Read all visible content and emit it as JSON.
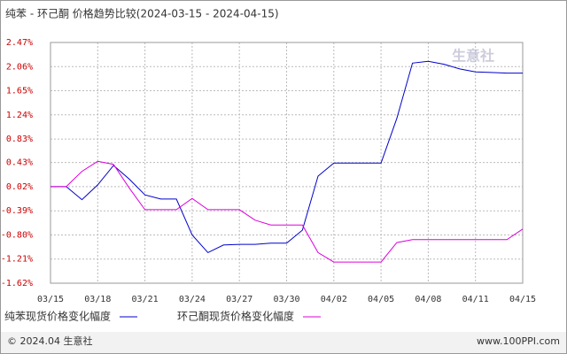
{
  "chart_data": {
    "type": "line",
    "title": "纯苯 - 环己酮 价格趋势比较(2024-03-15 - 2024-04-15)",
    "watermark": "生意社",
    "footer_left": "© 2024.04 生意社",
    "footer_right": "www.100PPI.com",
    "categories": [
      "03/15",
      null,
      null,
      "03/18",
      null,
      null,
      "03/21",
      null,
      null,
      "03/24",
      null,
      null,
      "03/27",
      null,
      null,
      "03/30",
      null,
      null,
      "04/02",
      null,
      null,
      "04/05",
      null,
      null,
      "04/08",
      null,
      null,
      "04/11",
      null,
      null,
      "04/15"
    ],
    "series": [
      {
        "name": "纯苯现货价格变化幅度",
        "color": "#0000cc",
        "values": [
          0.02,
          0.02,
          -0.2,
          0.05,
          0.38,
          0.15,
          -0.12,
          -0.19,
          -0.19,
          -0.8,
          -1.1,
          -0.97,
          -0.96,
          -0.96,
          -0.94,
          -0.94,
          -0.72,
          0.2,
          0.42,
          0.42,
          0.42,
          0.42,
          1.18,
          2.12,
          2.15,
          2.1,
          2.02,
          1.97,
          1.96,
          1.95,
          1.95
        ]
      },
      {
        "name": "环己酮现货价格变化幅度",
        "color": "#dd00dd",
        "values": [
          0.02,
          0.02,
          0.28,
          0.45,
          0.4,
          0.0,
          -0.37,
          -0.37,
          -0.37,
          -0.18,
          -0.37,
          -0.37,
          -0.37,
          -0.55,
          -0.63,
          -0.63,
          -0.63,
          -1.1,
          -1.26,
          -1.26,
          -1.26,
          -1.26,
          -0.93,
          -0.88,
          -0.88,
          -0.88,
          -0.88,
          -0.88,
          -0.88,
          -0.88,
          -0.7
        ]
      }
    ],
    "ylim": [
      -1.62,
      2.47
    ],
    "yticks": [
      {
        "value": 2.47,
        "label": "2.47%"
      },
      {
        "value": 2.06,
        "label": "2.06%"
      },
      {
        "value": 1.65,
        "label": "1.65%"
      },
      {
        "value": 1.24,
        "label": "1.24%"
      },
      {
        "value": 0.83,
        "label": "0.83%"
      },
      {
        "value": 0.43,
        "label": "0.43%"
      },
      {
        "value": 0.02,
        "label": "0.02%"
      },
      {
        "value": -0.39,
        "label": "-0.39%"
      },
      {
        "value": -0.8,
        "label": "-0.80%"
      },
      {
        "value": -1.21,
        "label": "-1.21%"
      },
      {
        "value": -1.62,
        "label": "-1.62%"
      }
    ],
    "grid": true
  }
}
